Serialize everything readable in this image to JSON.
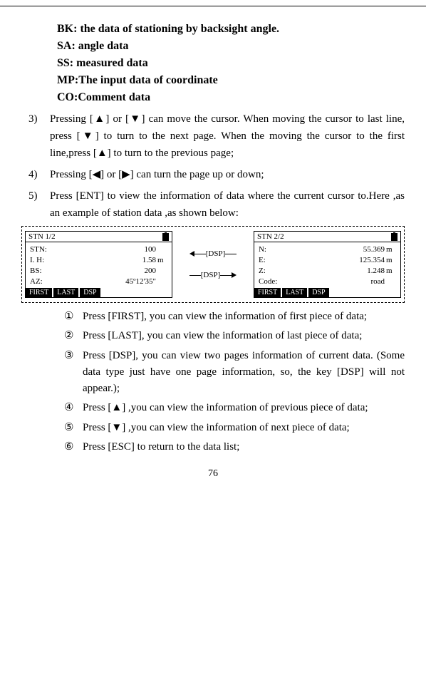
{
  "defs": {
    "bk": "BK: the data of stationing by backsight angle.",
    "sa": "SA: angle data",
    "ss": "SS: measured data",
    "mp": "MP:The input data of coordinate",
    "co": "CO:Comment data"
  },
  "items": {
    "n3": "3)",
    "t3": "Pressing [▲] or [▼] can move the cursor. When moving the cursor to last line, press [▼] to turn to the next page. When the moving the cursor to the first line,press [▲] to turn to the previous page;",
    "n4": "4)",
    "t4": "Pressing [◀] or [▶] can turn the page up or down;",
    "n5": "5)",
    "t5": "Press [ENT] to view the information of data where the current cursor to.Here ,as an example of station data ,as shown below:"
  },
  "screen1": {
    "title": "STN   1/2",
    "r1l": "STN:",
    "r1v": "100",
    "r1u": "",
    "r2l": " I. H:",
    "r2v": "1.58",
    "r2u": "m",
    "r3l": " BS:",
    "r3v": "200",
    "r3u": "",
    "r4l": " AZ:",
    "r4v": "45º12'35\"",
    "r4u": "",
    "f1": "FIRST",
    "f2": "LAST",
    "f3": "DSP"
  },
  "dsp": "[DSP]",
  "screen2": {
    "title": "STN   2/2",
    "r1l": "N:",
    "r1v": "55.369",
    "r1u": "m",
    "r2l": " E:",
    "r2v": "125.354",
    "r2u": "m",
    "r3l": " Z:",
    "r3v": "1.248",
    "r3u": "m",
    "r4l": "Code:",
    "r4v": "road",
    "r4u": "",
    "f1": "FIRST",
    "f2": "LAST",
    "f3": "DSP"
  },
  "subs": {
    "n1": "①",
    "t1": "Press [FIRST], you can view the information of first piece of data;",
    "n2": "②",
    "t2": "Press [LAST], you can view the information of last piece of data;",
    "n3": "③",
    "t3": "Press [DSP], you can view two pages information of current data. (Some data type just have one page information, so, the key [DSP] will not appear.);",
    "n4": "④",
    "t4": "Press [▲] ,you can view the information of previous piece of data;",
    "n5": "⑤",
    "t5": "Press [▼] ,you can view the information of next piece of data;",
    "n6": "⑥",
    "t6": "Press [ESC] to return to the data list;"
  },
  "pagenum": "76"
}
